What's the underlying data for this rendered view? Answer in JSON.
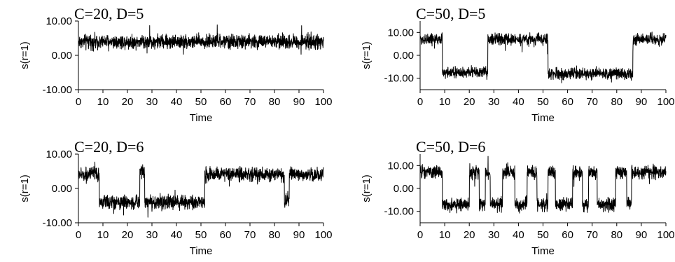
{
  "chart_data": [
    {
      "type": "line",
      "title": "C=20, D=5",
      "xlabel": "Time",
      "ylabel": "s(r=1)",
      "xlim": [
        0,
        100
      ],
      "ylim": [
        -10,
        10
      ],
      "xticks": [
        "0",
        "10",
        "20",
        "30",
        "40",
        "50",
        "60",
        "70",
        "80",
        "90",
        "100"
      ],
      "yticks": [
        "10.00",
        "0.00",
        "-10.00"
      ],
      "grid": false,
      "noise": 1.0,
      "series": [
        {
          "segments": [
            {
              "t0": 0,
              "t1": 100,
              "level": 4
            }
          ]
        }
      ]
    },
    {
      "type": "line",
      "title": "C=50, D=5",
      "xlabel": "Time",
      "ylabel": "s(r=1)",
      "xlim": [
        0,
        100
      ],
      "ylim": [
        -15,
        15
      ],
      "xticks": [
        "0",
        "10",
        "20",
        "30",
        "40",
        "50",
        "60",
        "70",
        "80",
        "90",
        "100"
      ],
      "yticks": [
        "10.00",
        "0.00",
        "-10.00"
      ],
      "grid": false,
      "noise": 1.2,
      "series": [
        {
          "segments": [
            {
              "t0": 0,
              "t1": 9,
              "level": 7
            },
            {
              "t0": 9,
              "t1": 27.5,
              "level": -7.5
            },
            {
              "t0": 27.5,
              "t1": 52,
              "level": 7
            },
            {
              "t0": 52,
              "t1": 86.5,
              "level": -8
            },
            {
              "t0": 86.5,
              "t1": 100,
              "level": 7
            }
          ]
        }
      ]
    },
    {
      "type": "line",
      "title": "C=20, D=6",
      "xlabel": "Time",
      "ylabel": "s(r=1)",
      "xlim": [
        0,
        100
      ],
      "ylim": [
        -10,
        10
      ],
      "xticks": [
        "0",
        "10",
        "20",
        "30",
        "40",
        "50",
        "60",
        "70",
        "80",
        "90",
        "100"
      ],
      "yticks": [
        "10.00",
        "0.00",
        "-10.00"
      ],
      "grid": false,
      "noise": 1.0,
      "series": [
        {
          "segments": [
            {
              "t0": 0,
              "t1": 8.5,
              "level": 4
            },
            {
              "t0": 8.5,
              "t1": 25,
              "level": -4
            },
            {
              "t0": 25,
              "t1": 27,
              "level": 5
            },
            {
              "t0": 27,
              "t1": 51.5,
              "level": -4
            },
            {
              "t0": 51.5,
              "t1": 84,
              "level": 4
            },
            {
              "t0": 84,
              "t1": 86,
              "level": -3.5
            },
            {
              "t0": 86,
              "t1": 100,
              "level": 4
            }
          ]
        }
      ]
    },
    {
      "type": "line",
      "title": "C=50, D=6",
      "xlabel": "Time",
      "ylabel": "s(r=1)",
      "xlim": [
        0,
        100
      ],
      "ylim": [
        -15,
        15
      ],
      "xticks": [
        "0",
        "10",
        "20",
        "30",
        "40",
        "50",
        "60",
        "70",
        "80",
        "90",
        "100"
      ],
      "yticks": [
        "10.00",
        "0.00",
        "-10.00"
      ],
      "grid": false,
      "noise": 1.4,
      "series": [
        {
          "segments": [
            {
              "t0": 0,
              "t1": 9,
              "level": 7
            },
            {
              "t0": 9,
              "t1": 20,
              "level": -7
            },
            {
              "t0": 20,
              "t1": 24,
              "level": 7
            },
            {
              "t0": 24,
              "t1": 26.5,
              "level": -7
            },
            {
              "t0": 26.5,
              "t1": 28.5,
              "level": 7
            },
            {
              "t0": 28.5,
              "t1": 33.5,
              "level": -7
            },
            {
              "t0": 33.5,
              "t1": 38.5,
              "level": 7
            },
            {
              "t0": 38.5,
              "t1": 43.5,
              "level": -7
            },
            {
              "t0": 43.5,
              "t1": 47.5,
              "level": 7
            },
            {
              "t0": 47.5,
              "t1": 52,
              "level": -7
            },
            {
              "t0": 52,
              "t1": 55,
              "level": 7
            },
            {
              "t0": 55,
              "t1": 62,
              "level": -7
            },
            {
              "t0": 62,
              "t1": 66,
              "level": 7
            },
            {
              "t0": 66,
              "t1": 68.5,
              "level": -7
            },
            {
              "t0": 68.5,
              "t1": 72,
              "level": 7
            },
            {
              "t0": 72,
              "t1": 79.5,
              "level": -7
            },
            {
              "t0": 79.5,
              "t1": 84,
              "level": 7
            },
            {
              "t0": 84,
              "t1": 86,
              "level": -7
            },
            {
              "t0": 86,
              "t1": 93,
              "level": 7
            },
            {
              "t0": 93,
              "t1": 100,
              "level": 7
            }
          ]
        }
      ]
    }
  ]
}
